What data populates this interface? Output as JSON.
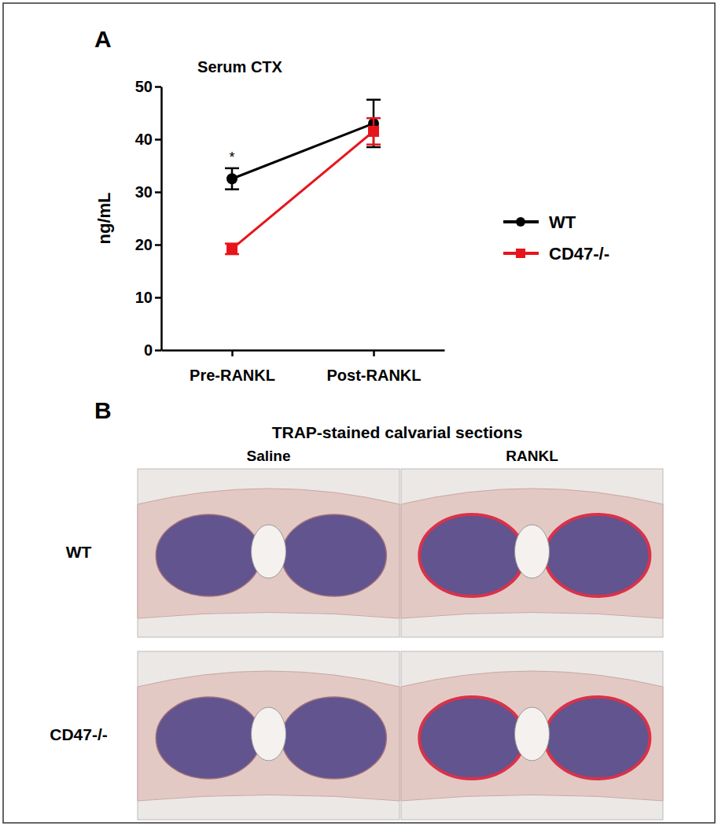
{
  "chart_data": {
    "type": "line",
    "title": "Serum CTX",
    "annotations": [
      "A",
      "*"
    ],
    "y_label": "ng/mL",
    "categories": [
      "Pre-RANKL",
      "Post-RANKL"
    ],
    "series": [
      {
        "name": "WT",
        "color": "#000000",
        "marker": "circle",
        "line_style": "solid",
        "values": [
          32.5,
          43
        ],
        "errors": [
          2,
          4.5
        ]
      },
      {
        "name": "CD47-/-",
        "color": "#e8141b",
        "marker": "square",
        "line_style": "solid",
        "values": [
          19.2,
          41.5
        ],
        "errors": [
          1,
          2.5
        ]
      }
    ],
    "ylim": [
      0,
      50
    ],
    "yticks": [
      0,
      10,
      20,
      30,
      40,
      50
    ],
    "grid": false,
    "legend": "right"
  },
  "panel_b": {
    "label": "B",
    "title": "TRAP-stained calvarial sections",
    "columns": [
      "Saline",
      "RANKL"
    ],
    "rows": [
      "WT",
      "CD47-/-"
    ]
  }
}
